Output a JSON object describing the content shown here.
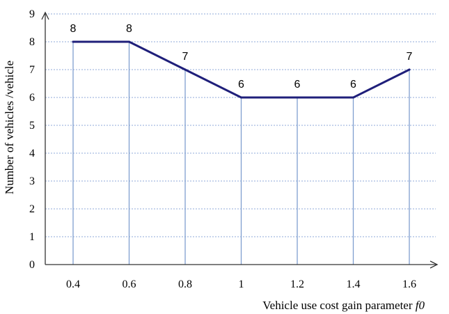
{
  "chart_data": {
    "type": "line",
    "x": [
      "0.4",
      "0.6",
      "0.8",
      "1",
      "1.2",
      "1.4",
      "1.6"
    ],
    "series": [
      {
        "values": [
          8,
          8,
          7,
          6,
          6,
          6,
          7
        ]
      }
    ],
    "data_labels": [
      "8",
      "8",
      "7",
      "6",
      "6",
      "6",
      "7"
    ],
    "xlabel": "Vehicle use cost gain parameter",
    "xlabel_italic": "f0",
    "ylabel": "Number of vehicles /vehicle",
    "ylim": [
      0,
      9
    ],
    "yticks": [
      "0",
      "1",
      "2",
      "3",
      "4",
      "5",
      "6",
      "7",
      "8",
      "9"
    ],
    "grid": "horizontal dotted",
    "drop_lines": true,
    "colors": {
      "line": "#1f1f7a",
      "drop_line": "#7f9fcf",
      "grid": "#8fa8d8",
      "axis": "#333333"
    }
  }
}
